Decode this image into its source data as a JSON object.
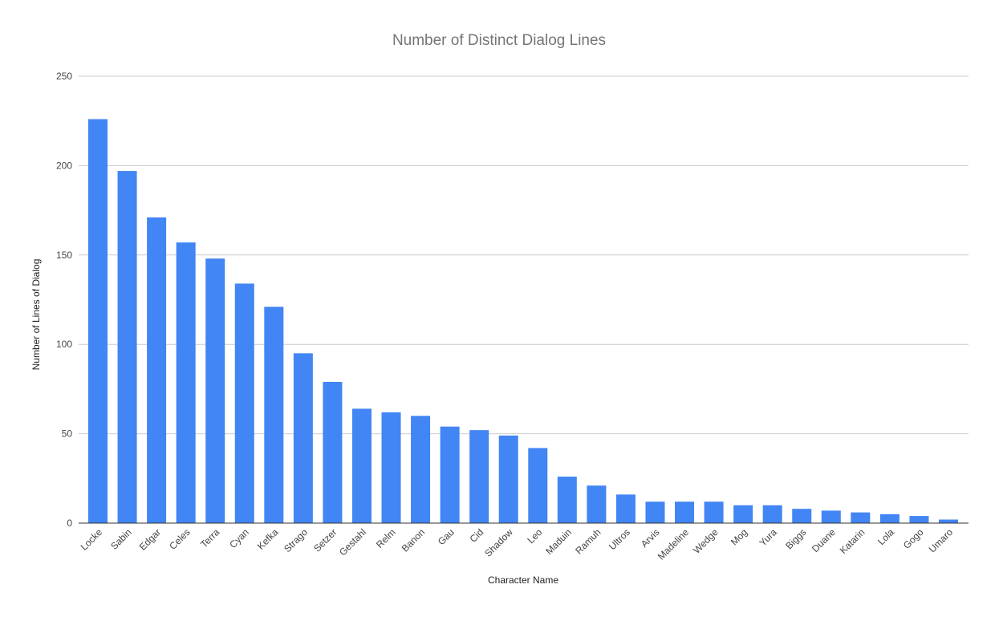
{
  "chart_data": {
    "type": "bar",
    "title": "Number of Distinct Dialog Lines",
    "xlabel": "Character Name",
    "ylabel": "Number of Lines of Dialog",
    "ylim": [
      0,
      250
    ],
    "yticks": [
      0,
      50,
      100,
      150,
      200,
      250
    ],
    "grid": true,
    "legend": "none",
    "colors": {
      "bar": "#4285f4"
    },
    "categories": [
      "Locke",
      "Sabin",
      "Edgar",
      "Celes",
      "Terra",
      "Cyan",
      "Kefka",
      "Strago",
      "Setzer",
      "Gestahl",
      "Relm",
      "Banon",
      "Gau",
      "Cid",
      "Shadow",
      "Leo",
      "Maduin",
      "Ramuh",
      "Ultros",
      "Arvis",
      "Madeline",
      "Wedge",
      "Mog",
      "Yura",
      "Biggs",
      "Duane",
      "Katarin",
      "Lola",
      "Gogo",
      "Umaro"
    ],
    "values": [
      226,
      197,
      171,
      157,
      148,
      134,
      121,
      95,
      79,
      64,
      62,
      60,
      54,
      52,
      49,
      42,
      26,
      21,
      16,
      12,
      12,
      12,
      10,
      10,
      8,
      7,
      6,
      5,
      4,
      2
    ]
  }
}
